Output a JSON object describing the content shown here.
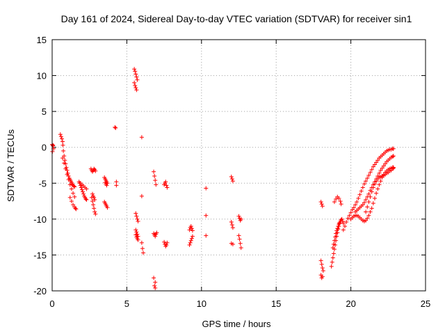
{
  "chart_data": {
    "type": "scatter",
    "title": "Day 161 of 2024, Sidereal Day-to-day VTEC variation (SDTVAR) for receiver sin1",
    "xlabel": "GPS time / hours",
    "ylabel": "SDTVAR / TECUs",
    "xlim": [
      0,
      25
    ],
    "ylim": [
      -20,
      15
    ],
    "xticks": [
      0,
      5,
      10,
      15,
      20,
      25
    ],
    "yticks": [
      -20,
      -15,
      -10,
      -5,
      0,
      5,
      10,
      15
    ],
    "grid": true,
    "marker": "+",
    "marker_color": "#ff0000",
    "series": [
      {
        "name": "SDTVAR",
        "x": [
          0.0,
          0.05,
          0.1,
          0.02,
          0.06,
          0.55,
          0.6,
          0.65,
          0.7,
          0.72,
          0.75,
          0.8,
          0.85,
          0.9,
          0.95,
          1.0,
          1.05,
          1.1,
          1.15,
          1.2,
          1.25,
          1.3,
          1.35,
          1.4,
          1.45,
          1.5,
          0.7,
          0.8,
          0.9,
          1.0,
          1.1,
          1.2,
          1.3,
          1.4,
          1.5,
          1.2,
          1.3,
          1.4,
          1.5,
          1.55,
          1.6,
          1.8,
          1.85,
          1.9,
          1.95,
          2.0,
          2.05,
          2.1,
          2.15,
          2.2,
          2.25,
          2.3,
          1.9,
          2.0,
          2.1,
          2.2,
          2.3,
          2.6,
          2.65,
          2.7,
          2.75,
          2.8,
          2.85,
          2.9,
          2.65,
          2.7,
          2.75,
          2.8,
          2.85,
          2.9,
          2.7,
          2.75,
          2.8,
          2.85,
          3.5,
          3.55,
          3.6,
          3.65,
          3.7,
          3.5,
          3.55,
          3.6,
          3.65,
          3.7,
          3.55,
          3.6,
          3.65,
          4.2,
          4.25,
          4.3,
          4.3,
          5.5,
          5.55,
          5.6,
          5.65,
          5.7,
          5.5,
          5.55,
          5.6,
          5.65,
          5.6,
          5.65,
          5.7,
          5.75,
          5.6,
          5.65,
          5.7,
          5.75,
          5.6,
          5.65,
          5.7,
          5.75,
          6.0,
          6.0,
          6.0,
          6.05,
          6.1,
          6.8,
          6.85,
          6.9,
          6.95,
          6.8,
          6.85,
          6.9,
          6.95,
          7.0,
          6.8,
          6.9,
          6.85,
          6.9,
          7.5,
          7.55,
          7.6,
          7.65,
          7.7,
          7.5,
          7.55,
          7.6,
          7.65,
          7.7,
          9.2,
          9.25,
          9.3,
          9.35,
          9.4,
          9.2,
          9.25,
          9.3,
          9.35,
          9.4,
          10.3,
          10.3,
          10.3,
          12.0,
          12.05,
          12.1,
          12.0,
          12.05,
          12.1,
          12.0,
          12.1,
          12.5,
          12.55,
          12.6,
          12.65,
          12.5,
          12.55,
          12.6,
          12.65,
          18.0,
          18.05,
          18.1,
          18.0,
          18.05,
          18.1,
          18.15,
          18.0,
          18.05,
          18.1,
          18.7,
          18.75,
          18.8,
          18.85,
          18.9,
          18.95,
          19.0,
          19.05,
          19.1,
          19.15,
          19.2,
          19.25,
          19.3,
          19.35,
          19.4,
          19.45,
          19.5,
          18.8,
          18.85,
          18.9,
          18.95,
          19.0,
          19.05,
          19.1,
          19.15,
          19.2,
          19.25,
          19.3,
          18.9,
          19.0,
          19.1,
          19.2,
          19.3,
          19.35,
          19.5,
          19.6,
          19.7,
          19.8,
          19.9,
          20.0,
          20.1,
          20.2,
          20.3,
          20.4,
          20.5,
          20.6,
          20.7,
          20.8,
          20.9,
          21.0,
          21.1,
          21.2,
          21.3,
          21.4,
          21.5,
          21.6,
          21.7,
          21.8,
          21.9,
          22.0,
          22.1,
          22.2,
          22.3,
          22.4,
          22.5,
          22.6,
          22.7,
          22.8,
          22.85,
          20.0,
          20.1,
          20.2,
          20.3,
          20.4,
          20.5,
          20.6,
          20.7,
          20.8,
          20.9,
          21.0,
          21.1,
          21.2,
          21.3,
          21.4,
          21.5,
          21.6,
          21.7,
          21.8,
          21.9,
          22.0,
          22.1,
          22.2,
          22.3,
          22.4,
          22.5,
          22.6,
          22.7,
          22.8,
          22.85,
          20.3,
          20.4,
          20.5,
          20.6,
          20.7,
          20.8,
          20.9,
          21.0,
          21.1,
          21.2,
          21.3,
          21.4,
          21.5,
          21.6,
          21.7,
          21.8,
          21.9,
          22.0,
          22.1,
          22.2,
          22.3,
          22.4,
          22.5,
          22.6,
          22.7,
          22.8,
          22.85,
          21.0,
          21.1,
          21.2,
          21.3,
          21.4,
          21.5,
          21.6,
          21.7,
          21.8,
          21.9,
          22.0,
          22.1,
          22.2,
          22.3,
          22.4,
          22.5,
          22.6,
          22.7,
          22.8,
          22.85
        ],
        "y": [
          0.4,
          0.2,
          -0.2,
          -0.6,
          0.3,
          1.8,
          1.5,
          1.2,
          0.8,
          0.3,
          -0.5,
          -1.2,
          -1.8,
          -2.3,
          -2.8,
          -3.2,
          -3.6,
          -4.0,
          -4.3,
          -4.5,
          -4.7,
          -4.9,
          -5.1,
          -5.3,
          -5.4,
          -5.5,
          -1.5,
          -2.2,
          -3.0,
          -3.8,
          -4.5,
          -5.2,
          -5.8,
          -6.4,
          -6.9,
          -7.0,
          -7.5,
          -8.0,
          -8.3,
          -8.5,
          -8.6,
          -4.8,
          -5.0,
          -5.3,
          -5.6,
          -5.9,
          -6.2,
          -6.5,
          -6.8,
          -7.0,
          -7.2,
          -7.3,
          -5.0,
          -5.2,
          -5.4,
          -5.6,
          -5.8,
          -3.0,
          -3.2,
          -3.4,
          -3.2,
          -3.0,
          -3.1,
          -3.3,
          -7.0,
          -7.5,
          -8.0,
          -8.5,
          -9.0,
          -9.3,
          -6.5,
          -6.8,
          -7.0,
          -7.3,
          -4.2,
          -4.4,
          -4.6,
          -4.8,
          -5.0,
          -7.6,
          -7.8,
          -8.0,
          -8.2,
          -8.4,
          -4.9,
          -5.1,
          -5.3,
          2.8,
          2.7,
          -4.8,
          -5.3,
          10.9,
          10.6,
          10.2,
          9.8,
          9.4,
          9.0,
          8.6,
          8.3,
          8.0,
          -9.2,
          -9.6,
          -10.0,
          -10.3,
          -11.5,
          -11.8,
          -12.1,
          -12.4,
          -12.2,
          -12.5,
          -12.7,
          -12.9,
          1.4,
          -6.8,
          -13.3,
          -14.1,
          -14.7,
          -3.4,
          -4.0,
          -4.6,
          -5.2,
          -12.0,
          -12.2,
          -12.4,
          -12.1,
          -11.9,
          -18.2,
          -18.8,
          -19.3,
          -19.6,
          -5.2,
          -5.0,
          -4.8,
          -5.3,
          -5.6,
          -13.2,
          -13.5,
          -13.8,
          -13.6,
          -13.3,
          -13.6,
          -13.3,
          -13.0,
          -12.7,
          -12.4,
          -11.5,
          -11.2,
          -11.0,
          -11.3,
          -11.6,
          -5.7,
          -9.5,
          -12.3,
          -4.1,
          -4.4,
          -4.7,
          -10.4,
          -10.8,
          -11.2,
          -13.4,
          -13.5,
          -9.6,
          -9.9,
          -10.2,
          -10.0,
          -12.3,
          -12.8,
          -13.4,
          -14.0,
          -7.6,
          -7.9,
          -8.2,
          -15.8,
          -16.3,
          -16.8,
          -17.2,
          -17.8,
          -18.2,
          -18.0,
          -16.6,
          -16.0,
          -15.4,
          -14.8,
          -14.2,
          -13.6,
          -13.0,
          -12.4,
          -11.9,
          -11.4,
          -11.0,
          -10.6,
          -10.3,
          -10.1,
          -10.0,
          -10.3,
          -10.6,
          -14.0,
          -13.5,
          -13.0,
          -12.5,
          -12.0,
          -11.6,
          -11.3,
          -11.0,
          -10.7,
          -10.5,
          -10.3,
          -7.6,
          -7.2,
          -6.9,
          -7.1,
          -7.5,
          -7.9,
          -11.5,
          -11.0,
          -10.4,
          -9.9,
          -9.5,
          -9.1,
          -8.7,
          -8.4,
          -8.0,
          -7.6,
          -7.1,
          -6.6,
          -6.1,
          -5.6,
          -5.1,
          -4.7,
          -4.3,
          -3.9,
          -3.5,
          -3.1,
          -2.7,
          -2.4,
          -2.1,
          -1.8,
          -1.5,
          -1.3,
          -1.1,
          -0.9,
          -0.7,
          -0.5,
          -0.4,
          -0.3,
          -0.3,
          -0.2,
          -0.2,
          -10.0,
          -9.8,
          -9.6,
          -9.5,
          -9.5,
          -9.6,
          -9.8,
          -10.0,
          -10.2,
          -10.3,
          -10.2,
          -9.9,
          -9.5,
          -9.0,
          -8.5,
          -7.8,
          -7.1,
          -6.4,
          -5.8,
          -5.2,
          -4.7,
          -4.2,
          -3.8,
          -3.5,
          -3.3,
          -3.1,
          -3.0,
          -2.9,
          -2.8,
          -2.8,
          -9.0,
          -8.8,
          -8.6,
          -8.4,
          -8.2,
          -8.0,
          -7.7,
          -7.3,
          -6.9,
          -6.5,
          -6.0,
          -5.6,
          -5.2,
          -4.8,
          -4.4,
          -4.0,
          -3.6,
          -3.2,
          -2.9,
          -2.6,
          -2.3,
          -2.0,
          -1.8,
          -1.6,
          -1.4,
          -1.3,
          -1.2,
          -9.0,
          -8.3,
          -7.6,
          -6.9,
          -6.2,
          -5.6,
          -5.1,
          -4.7,
          -4.4,
          -4.2,
          -4.1,
          -4.0,
          -3.9,
          -3.8,
          -3.6,
          -3.5,
          -3.3,
          -3.2,
          -3.0,
          -2.9
        ]
      }
    ]
  }
}
